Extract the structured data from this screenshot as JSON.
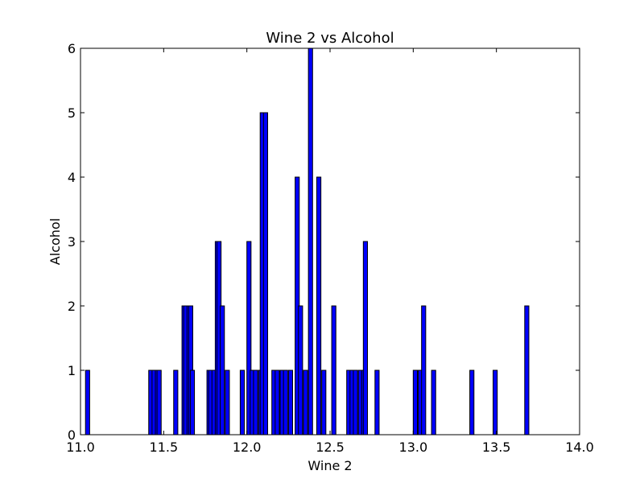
{
  "chart_data": {
    "type": "bar",
    "title": "Wine 2 vs Alcohol",
    "xlabel": "Wine 2",
    "ylabel": "Alcohol",
    "xlim": [
      11.0,
      14.0
    ],
    "ylim": [
      0,
      6
    ],
    "bar_width": 0.025,
    "color": "#0000ff",
    "xticks": [
      "11.0",
      "11.5",
      "12.0",
      "12.5",
      "13.0",
      "13.5",
      "14.0"
    ],
    "yticks": [
      "0",
      "1",
      "2",
      "3",
      "4",
      "5",
      "6"
    ],
    "x": [
      11.03,
      11.41,
      11.43,
      11.45,
      11.46,
      11.56,
      11.61,
      11.62,
      11.64,
      11.65,
      11.66,
      11.76,
      11.77,
      11.79,
      11.81,
      11.82,
      11.84,
      11.87,
      11.96,
      12.0,
      12.02,
      12.04,
      12.07,
      12.08,
      12.1,
      12.15,
      12.17,
      12.2,
      12.22,
      12.25,
      12.29,
      12.31,
      12.34,
      12.37,
      12.42,
      12.45,
      12.51,
      12.6,
      12.62,
      12.64,
      12.67,
      12.69,
      12.7,
      12.77,
      13.0,
      13.03,
      13.05,
      13.11,
      13.34,
      13.48,
      13.67
    ],
    "values": [
      1,
      1,
      1,
      1,
      1,
      1,
      2,
      2,
      2,
      2,
      1,
      1,
      1,
      1,
      3,
      3,
      2,
      1,
      1,
      3,
      1,
      1,
      1,
      5,
      5,
      1,
      1,
      1,
      1,
      1,
      4,
      2,
      1,
      6,
      4,
      1,
      2,
      1,
      1,
      1,
      1,
      1,
      3,
      1,
      1,
      1,
      2,
      1,
      1,
      1,
      2
    ]
  }
}
